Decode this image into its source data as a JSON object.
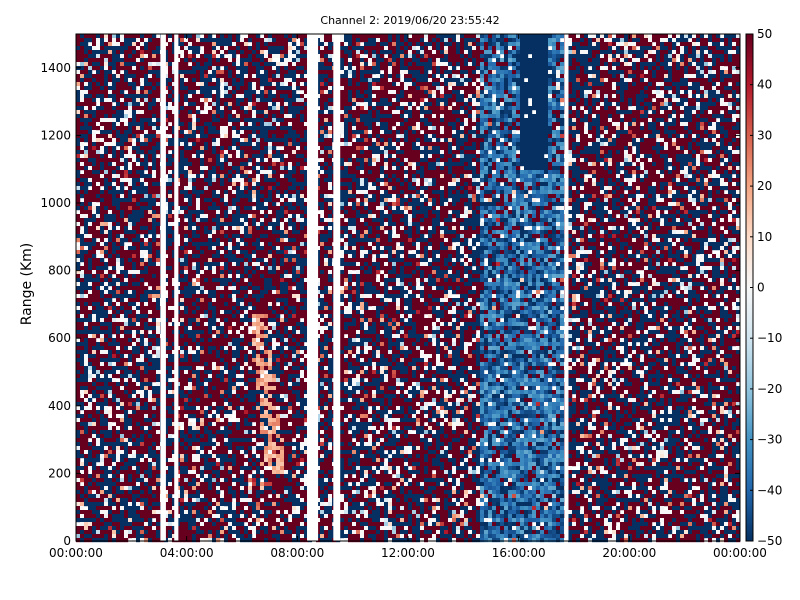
{
  "chart_data": {
    "type": "heatmap",
    "title": "Channel 2: 2019/06/20 23:55:42",
    "xlabel": "",
    "ylabel": "Range (Km)",
    "xlim": [
      "00:00:00",
      "24:00:00"
    ],
    "ylim": [
      0,
      1500
    ],
    "x_ticks": [
      "00:00:00",
      "04:00:00",
      "08:00:00",
      "12:00:00",
      "16:00:00",
      "20:00:00",
      "00:00:00"
    ],
    "y_ticks": [
      0,
      200,
      400,
      600,
      800,
      1000,
      1200,
      1400
    ],
    "colorbar": {
      "colormap": "RdBu_r",
      "range": [
        -50,
        50
      ],
      "ticks": [
        -50,
        -40,
        -30,
        -20,
        -10,
        0,
        10,
        20,
        30,
        40,
        50
      ],
      "colors": [
        "#053061",
        "#2166ac",
        "#4393c3",
        "#92c5de",
        "#d1e5f0",
        "#f7f7f7",
        "#fddbc7",
        "#f4a582",
        "#d6604d",
        "#b2182b",
        "#67001f"
      ]
    },
    "gaps_hours": [
      [
        3.05,
        3.25
      ],
      [
        3.55,
        3.7
      ],
      [
        8.35,
        8.75
      ],
      [
        9.3,
        9.55
      ],
      [
        17.65,
        17.8
      ]
    ],
    "features": [
      {
        "description": "low-value region",
        "x_hours": [
          16.0,
          17.0
        ],
        "y_km": [
          1100,
          1500
        ],
        "value": -50
      },
      {
        "description": "low-value band",
        "x_hours": [
          14.6,
          17.6
        ],
        "y_km": [
          0,
          1500
        ],
        "value": -35
      },
      {
        "description": "positive trace",
        "x_hours": [
          6.3,
          8.3
        ],
        "y_km": [
          200,
          680
        ],
        "value": 15
      }
    ]
  }
}
